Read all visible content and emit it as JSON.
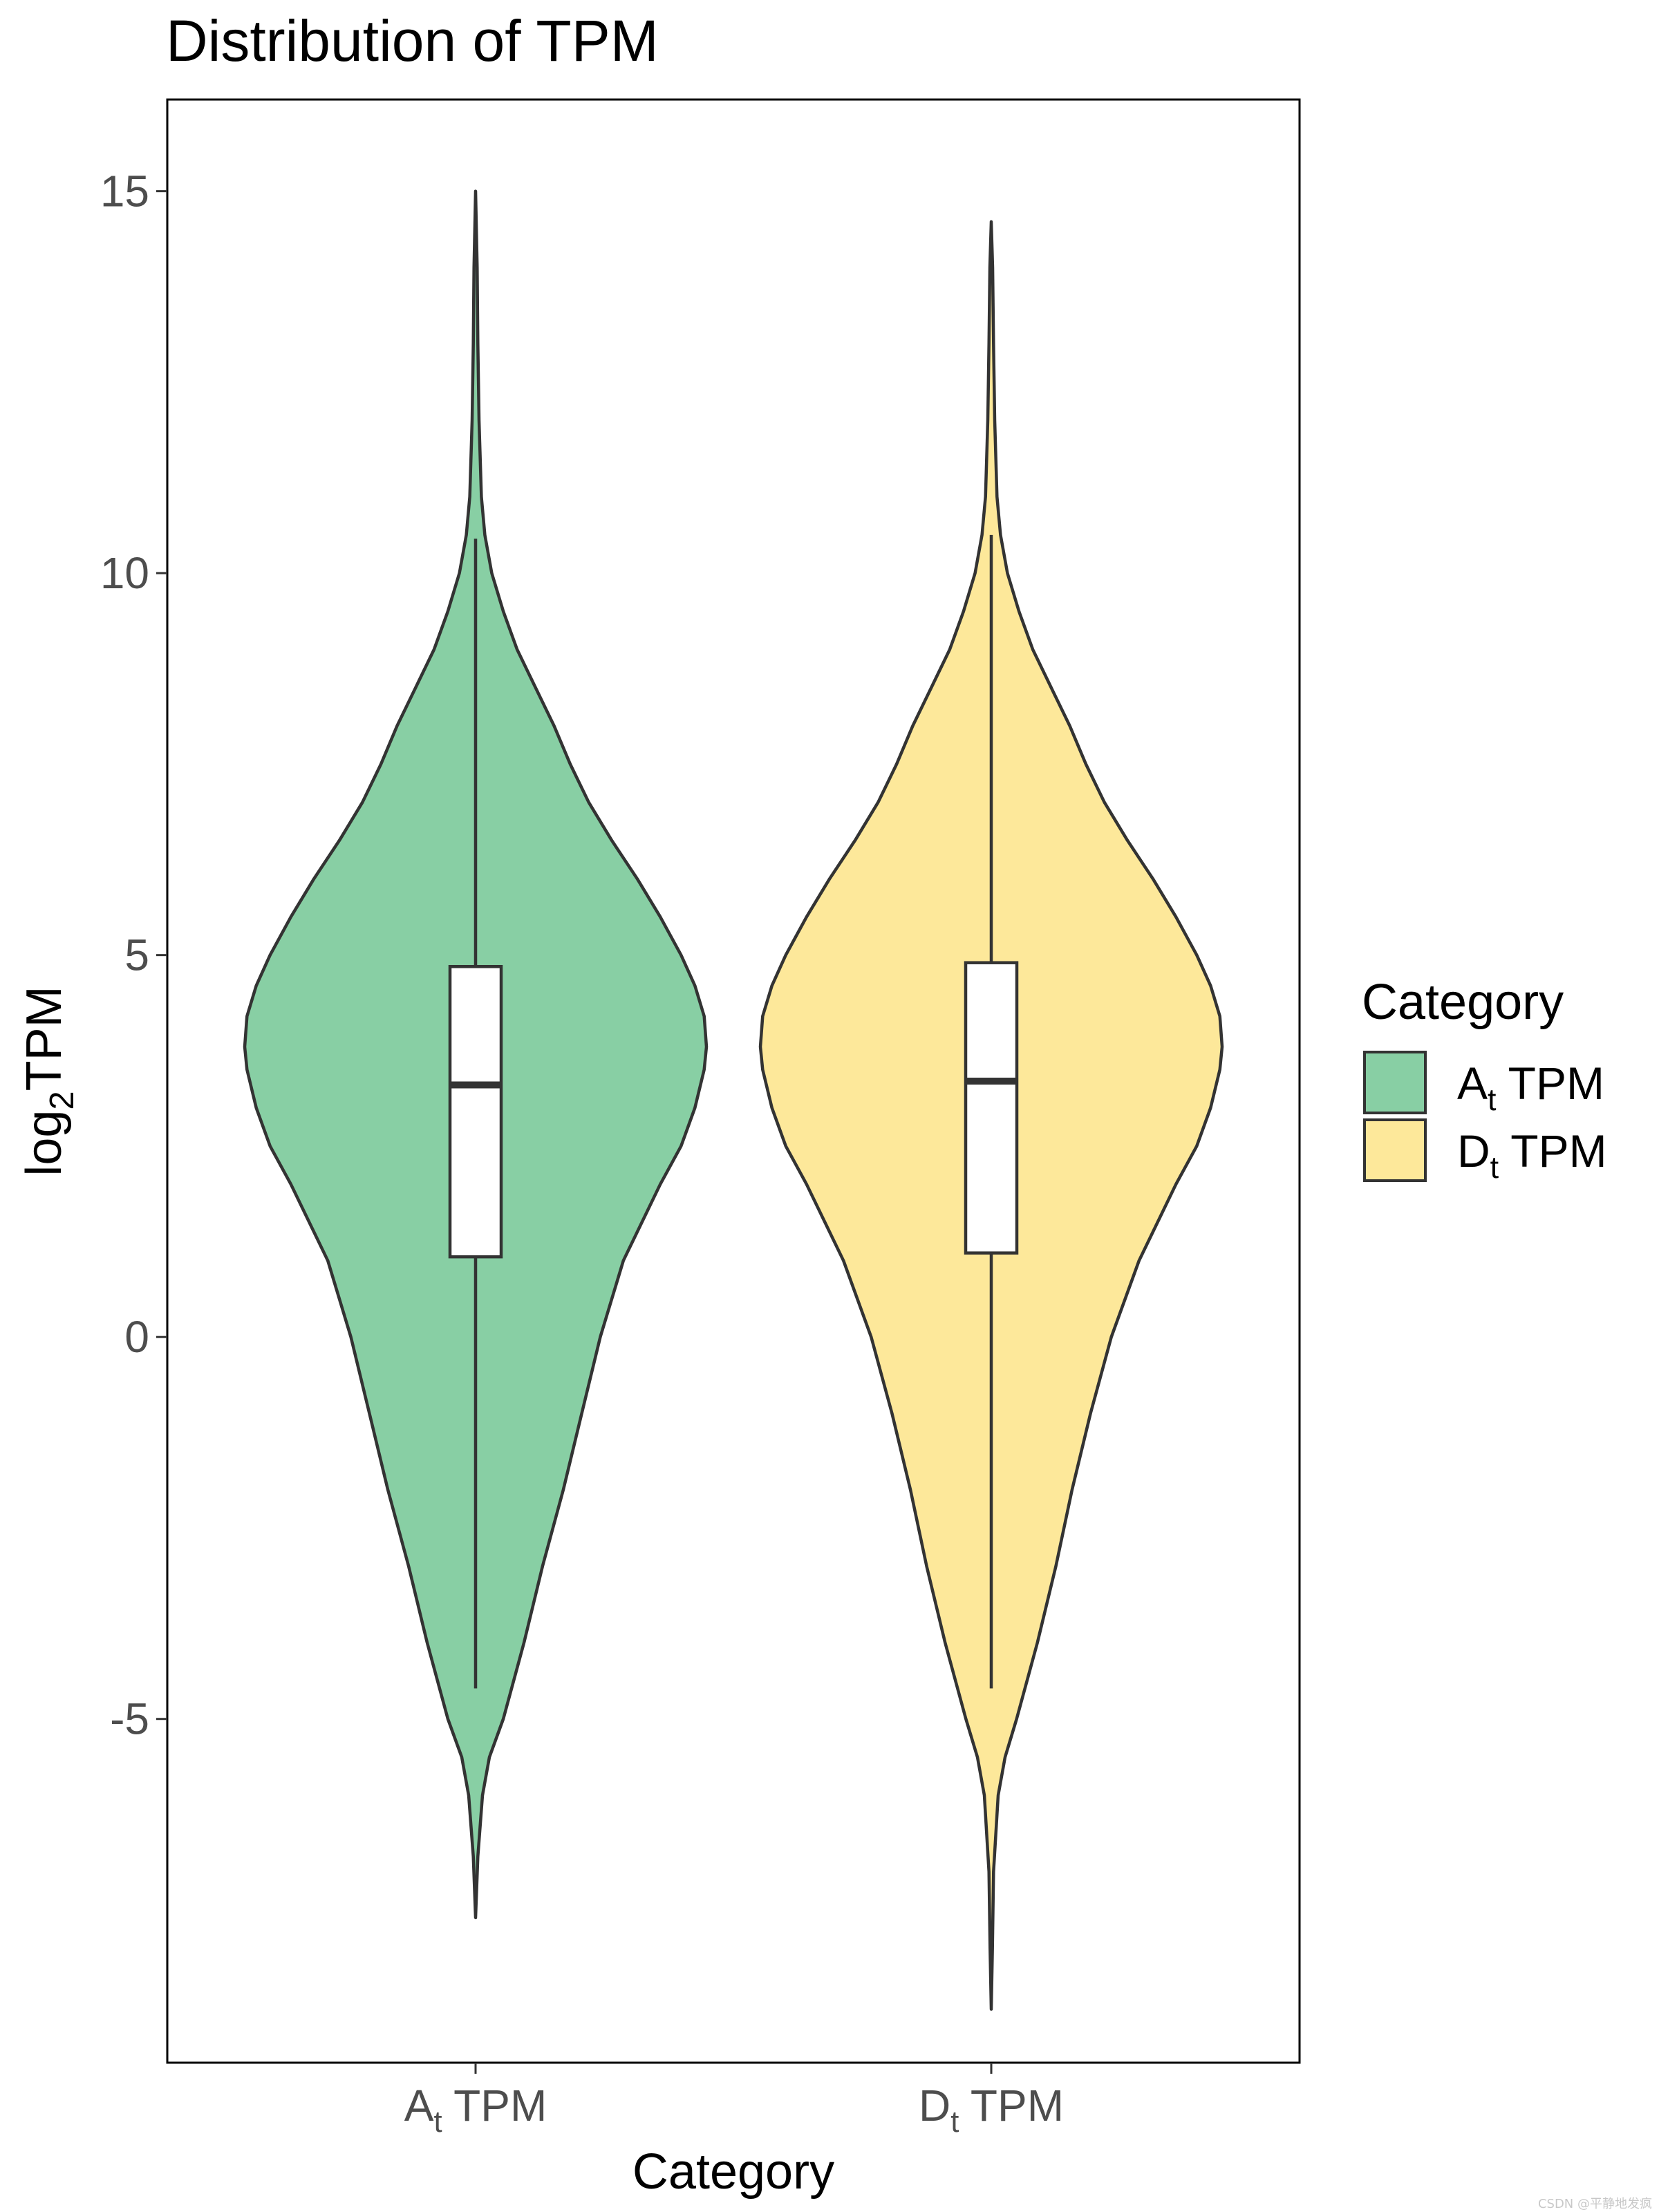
{
  "chart_data": {
    "type": "violin",
    "title": "Distribution of TPM",
    "xlabel": "Category",
    "ylabel": {
      "main": "log",
      "sub": "2",
      "rest": "TPM"
    },
    "ylim": [
      -9.5,
      16.2
    ],
    "yticks": [
      -5,
      0,
      5,
      10,
      15
    ],
    "ytick_labels": [
      "-5",
      "0",
      "5",
      "10",
      "15"
    ],
    "grid": false,
    "legend": {
      "title": "Category",
      "position": "right"
    },
    "categories": [
      {
        "label_main": "A",
        "label_sub": "t",
        "label_rest": " TPM"
      },
      {
        "label_main": "D",
        "label_sub": "t",
        "label_rest": " TPM"
      }
    ],
    "series": [
      {
        "label_main": "A",
        "label_sub": "t",
        "label_rest": " TPM",
        "fill": "#88cfa4",
        "range": [
          -7.6,
          15.0
        ],
        "density": [
          [
            -7.6,
            0.0
          ],
          [
            -6.8,
            0.01
          ],
          [
            -6.0,
            0.03
          ],
          [
            -5.5,
            0.06
          ],
          [
            -5.0,
            0.12
          ],
          [
            -4.0,
            0.21
          ],
          [
            -3.0,
            0.29
          ],
          [
            -2.0,
            0.38
          ],
          [
            -1.0,
            0.46
          ],
          [
            0.0,
            0.54
          ],
          [
            1.0,
            0.64
          ],
          [
            2.0,
            0.8
          ],
          [
            2.5,
            0.89
          ],
          [
            3.0,
            0.95
          ],
          [
            3.5,
            0.99
          ],
          [
            3.8,
            1.0
          ],
          [
            4.2,
            0.99
          ],
          [
            4.6,
            0.95
          ],
          [
            5.0,
            0.89
          ],
          [
            5.5,
            0.8
          ],
          [
            6.0,
            0.7
          ],
          [
            6.5,
            0.59
          ],
          [
            7.0,
            0.49
          ],
          [
            7.5,
            0.41
          ],
          [
            8.0,
            0.34
          ],
          [
            8.5,
            0.26
          ],
          [
            9.0,
            0.18
          ],
          [
            9.5,
            0.12
          ],
          [
            10.0,
            0.07
          ],
          [
            10.5,
            0.04
          ],
          [
            11.0,
            0.025
          ],
          [
            12.0,
            0.015
          ],
          [
            13.0,
            0.01
          ],
          [
            14.0,
            0.007
          ],
          [
            15.0,
            0.0
          ]
        ],
        "box": {
          "whisker_low": -4.6,
          "q1": 1.05,
          "median": 3.3,
          "q3": 4.85,
          "whisker_high": 10.45
        }
      },
      {
        "label_main": "D",
        "label_sub": "t",
        "label_rest": " TPM",
        "fill": "#fde89a",
        "range": [
          -8.8,
          14.6
        ],
        "density": [
          [
            -8.8,
            0.0
          ],
          [
            -8.0,
            0.005
          ],
          [
            -7.0,
            0.01
          ],
          [
            -6.0,
            0.03
          ],
          [
            -5.5,
            0.06
          ],
          [
            -5.0,
            0.11
          ],
          [
            -4.0,
            0.2
          ],
          [
            -3.0,
            0.28
          ],
          [
            -2.0,
            0.35
          ],
          [
            -1.0,
            0.43
          ],
          [
            0.0,
            0.52
          ],
          [
            1.0,
            0.64
          ],
          [
            2.0,
            0.8
          ],
          [
            2.5,
            0.89
          ],
          [
            3.0,
            0.95
          ],
          [
            3.5,
            0.99
          ],
          [
            3.8,
            1.0
          ],
          [
            4.2,
            0.99
          ],
          [
            4.6,
            0.95
          ],
          [
            5.0,
            0.89
          ],
          [
            5.5,
            0.8
          ],
          [
            6.0,
            0.7
          ],
          [
            6.5,
            0.59
          ],
          [
            7.0,
            0.49
          ],
          [
            7.5,
            0.41
          ],
          [
            8.0,
            0.34
          ],
          [
            8.5,
            0.26
          ],
          [
            9.0,
            0.18
          ],
          [
            9.5,
            0.12
          ],
          [
            10.0,
            0.07
          ],
          [
            10.5,
            0.04
          ],
          [
            11.0,
            0.025
          ],
          [
            12.0,
            0.015
          ],
          [
            13.0,
            0.01
          ],
          [
            14.0,
            0.006
          ],
          [
            14.6,
            0.0
          ]
        ],
        "box": {
          "whisker_low": -4.6,
          "q1": 1.1,
          "median": 3.35,
          "q3": 4.9,
          "whisker_high": 10.5
        }
      }
    ]
  },
  "watermark": "CSDN @平静地发疯"
}
